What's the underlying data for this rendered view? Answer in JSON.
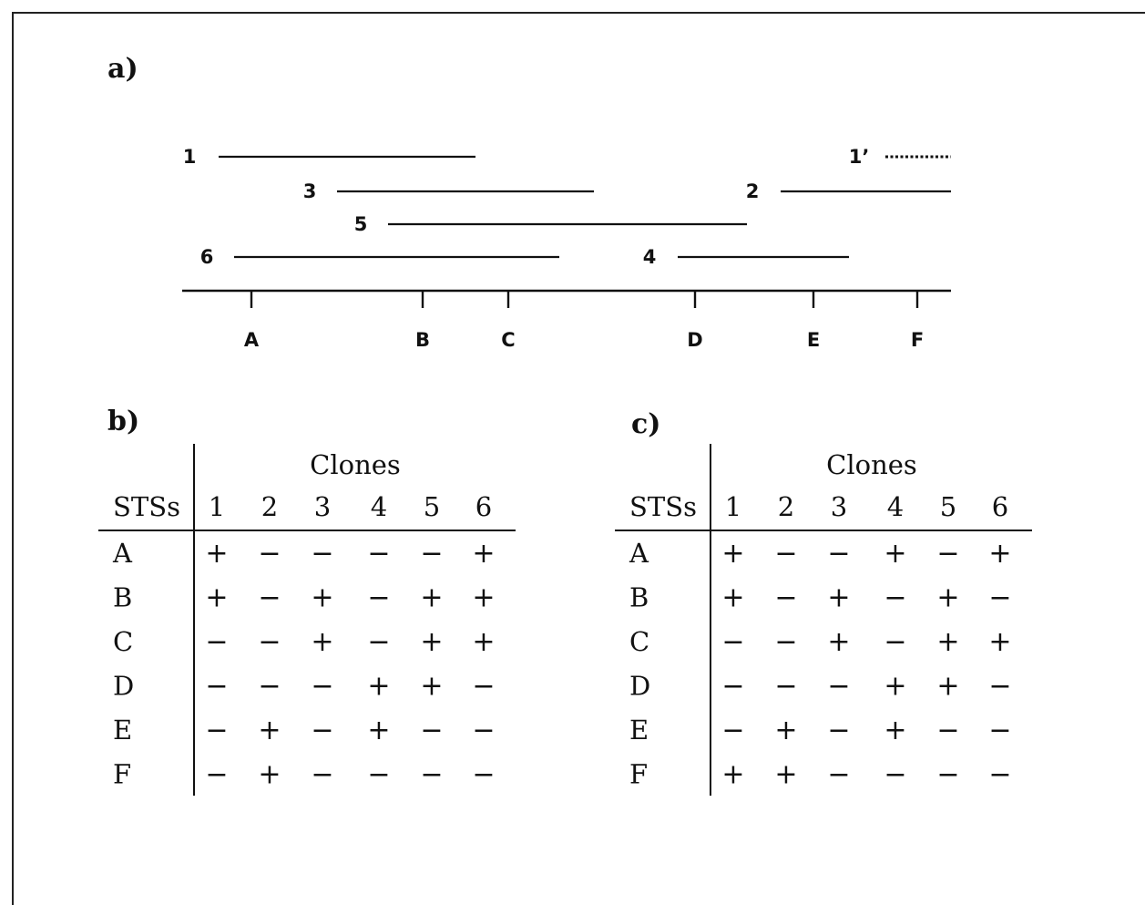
{
  "panels": {
    "a": {
      "label": "a)"
    },
    "b": {
      "label": "b)",
      "header_group": "Clones",
      "row_header": "STSs",
      "columns": [
        "1",
        "2",
        "3",
        "4",
        "5",
        "6"
      ],
      "rows": [
        {
          "sts": "A",
          "values": [
            "+",
            "−",
            "−",
            "−",
            "−",
            "+"
          ]
        },
        {
          "sts": "B",
          "values": [
            "+",
            "−",
            "+",
            "−",
            "+",
            "+"
          ]
        },
        {
          "sts": "C",
          "values": [
            "−",
            "−",
            "+",
            "−",
            "+",
            "+"
          ]
        },
        {
          "sts": "D",
          "values": [
            "−",
            "−",
            "−",
            "+",
            "+",
            "−"
          ]
        },
        {
          "sts": "E",
          "values": [
            "−",
            "+",
            "−",
            "+",
            "−",
            "−"
          ]
        },
        {
          "sts": "F",
          "values": [
            "−",
            "+",
            "−",
            "−",
            "−",
            "−"
          ]
        }
      ]
    },
    "c": {
      "label": "c)",
      "header_group": "Clones",
      "row_header": "STSs",
      "columns": [
        "1",
        "2",
        "3",
        "4",
        "5",
        "6"
      ],
      "rows": [
        {
          "sts": "A",
          "values": [
            "+",
            "−",
            "−",
            "+",
            "−",
            "+"
          ]
        },
        {
          "sts": "B",
          "values": [
            "+",
            "−",
            "+",
            "−",
            "+",
            "−"
          ]
        },
        {
          "sts": "C",
          "values": [
            "−",
            "−",
            "+",
            "−",
            "+",
            "+"
          ]
        },
        {
          "sts": "D",
          "values": [
            "−",
            "−",
            "−",
            "+",
            "+",
            "−"
          ]
        },
        {
          "sts": "E",
          "values": [
            "−",
            "+",
            "−",
            "+",
            "−",
            "−"
          ]
        },
        {
          "sts": "F",
          "values": [
            "+",
            "+",
            "−",
            "−",
            "−",
            "−"
          ]
        }
      ]
    }
  },
  "map": {
    "clones": [
      {
        "label": "1"
      },
      {
        "label": "3"
      },
      {
        "label": "5"
      },
      {
        "label": "6"
      },
      {
        "label": "2"
      },
      {
        "label": "4"
      },
      {
        "label": "1’",
        "style": "dotted"
      }
    ],
    "sts_markers": [
      "A",
      "B",
      "C",
      "D",
      "E",
      "F"
    ]
  }
}
